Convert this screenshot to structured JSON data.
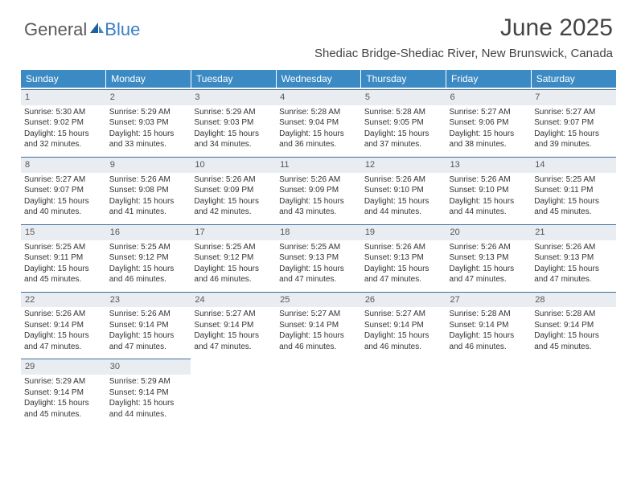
{
  "brand": {
    "part1": "General",
    "part2": "Blue"
  },
  "title": "June 2025",
  "location": "Shediac Bridge-Shediac River, New Brunswick, Canada",
  "colors": {
    "header_bg": "#3b8ac4",
    "header_text": "#ffffff",
    "daynum_bg": "#e9edf1",
    "row_border": "#3b6fa0",
    "logo_gray": "#5a5a5a",
    "logo_blue": "#3b7fc4"
  },
  "columns": [
    "Sunday",
    "Monday",
    "Tuesday",
    "Wednesday",
    "Thursday",
    "Friday",
    "Saturday"
  ],
  "days": [
    {
      "n": "1",
      "sunrise": "5:30 AM",
      "sunset": "9:02 PM",
      "day_h": "15",
      "day_m": "32"
    },
    {
      "n": "2",
      "sunrise": "5:29 AM",
      "sunset": "9:03 PM",
      "day_h": "15",
      "day_m": "33"
    },
    {
      "n": "3",
      "sunrise": "5:29 AM",
      "sunset": "9:03 PM",
      "day_h": "15",
      "day_m": "34"
    },
    {
      "n": "4",
      "sunrise": "5:28 AM",
      "sunset": "9:04 PM",
      "day_h": "15",
      "day_m": "36"
    },
    {
      "n": "5",
      "sunrise": "5:28 AM",
      "sunset": "9:05 PM",
      "day_h": "15",
      "day_m": "37"
    },
    {
      "n": "6",
      "sunrise": "5:27 AM",
      "sunset": "9:06 PM",
      "day_h": "15",
      "day_m": "38"
    },
    {
      "n": "7",
      "sunrise": "5:27 AM",
      "sunset": "9:07 PM",
      "day_h": "15",
      "day_m": "39"
    },
    {
      "n": "8",
      "sunrise": "5:27 AM",
      "sunset": "9:07 PM",
      "day_h": "15",
      "day_m": "40"
    },
    {
      "n": "9",
      "sunrise": "5:26 AM",
      "sunset": "9:08 PM",
      "day_h": "15",
      "day_m": "41"
    },
    {
      "n": "10",
      "sunrise": "5:26 AM",
      "sunset": "9:09 PM",
      "day_h": "15",
      "day_m": "42"
    },
    {
      "n": "11",
      "sunrise": "5:26 AM",
      "sunset": "9:09 PM",
      "day_h": "15",
      "day_m": "43"
    },
    {
      "n": "12",
      "sunrise": "5:26 AM",
      "sunset": "9:10 PM",
      "day_h": "15",
      "day_m": "44"
    },
    {
      "n": "13",
      "sunrise": "5:26 AM",
      "sunset": "9:10 PM",
      "day_h": "15",
      "day_m": "44"
    },
    {
      "n": "14",
      "sunrise": "5:25 AM",
      "sunset": "9:11 PM",
      "day_h": "15",
      "day_m": "45"
    },
    {
      "n": "15",
      "sunrise": "5:25 AM",
      "sunset": "9:11 PM",
      "day_h": "15",
      "day_m": "45"
    },
    {
      "n": "16",
      "sunrise": "5:25 AM",
      "sunset": "9:12 PM",
      "day_h": "15",
      "day_m": "46"
    },
    {
      "n": "17",
      "sunrise": "5:25 AM",
      "sunset": "9:12 PM",
      "day_h": "15",
      "day_m": "46"
    },
    {
      "n": "18",
      "sunrise": "5:25 AM",
      "sunset": "9:13 PM",
      "day_h": "15",
      "day_m": "47"
    },
    {
      "n": "19",
      "sunrise": "5:26 AM",
      "sunset": "9:13 PM",
      "day_h": "15",
      "day_m": "47"
    },
    {
      "n": "20",
      "sunrise": "5:26 AM",
      "sunset": "9:13 PM",
      "day_h": "15",
      "day_m": "47"
    },
    {
      "n": "21",
      "sunrise": "5:26 AM",
      "sunset": "9:13 PM",
      "day_h": "15",
      "day_m": "47"
    },
    {
      "n": "22",
      "sunrise": "5:26 AM",
      "sunset": "9:14 PM",
      "day_h": "15",
      "day_m": "47"
    },
    {
      "n": "23",
      "sunrise": "5:26 AM",
      "sunset": "9:14 PM",
      "day_h": "15",
      "day_m": "47"
    },
    {
      "n": "24",
      "sunrise": "5:27 AM",
      "sunset": "9:14 PM",
      "day_h": "15",
      "day_m": "47"
    },
    {
      "n": "25",
      "sunrise": "5:27 AM",
      "sunset": "9:14 PM",
      "day_h": "15",
      "day_m": "46"
    },
    {
      "n": "26",
      "sunrise": "5:27 AM",
      "sunset": "9:14 PM",
      "day_h": "15",
      "day_m": "46"
    },
    {
      "n": "27",
      "sunrise": "5:28 AM",
      "sunset": "9:14 PM",
      "day_h": "15",
      "day_m": "46"
    },
    {
      "n": "28",
      "sunrise": "5:28 AM",
      "sunset": "9:14 PM",
      "day_h": "15",
      "day_m": "45"
    },
    {
      "n": "29",
      "sunrise": "5:29 AM",
      "sunset": "9:14 PM",
      "day_h": "15",
      "day_m": "45"
    },
    {
      "n": "30",
      "sunrise": "5:29 AM",
      "sunset": "9:14 PM",
      "day_h": "15",
      "day_m": "44"
    }
  ],
  "labels": {
    "sunrise": "Sunrise:",
    "sunset": "Sunset:",
    "daylight": "Daylight:",
    "hours": "hours",
    "and": "and",
    "minutes": "minutes."
  }
}
